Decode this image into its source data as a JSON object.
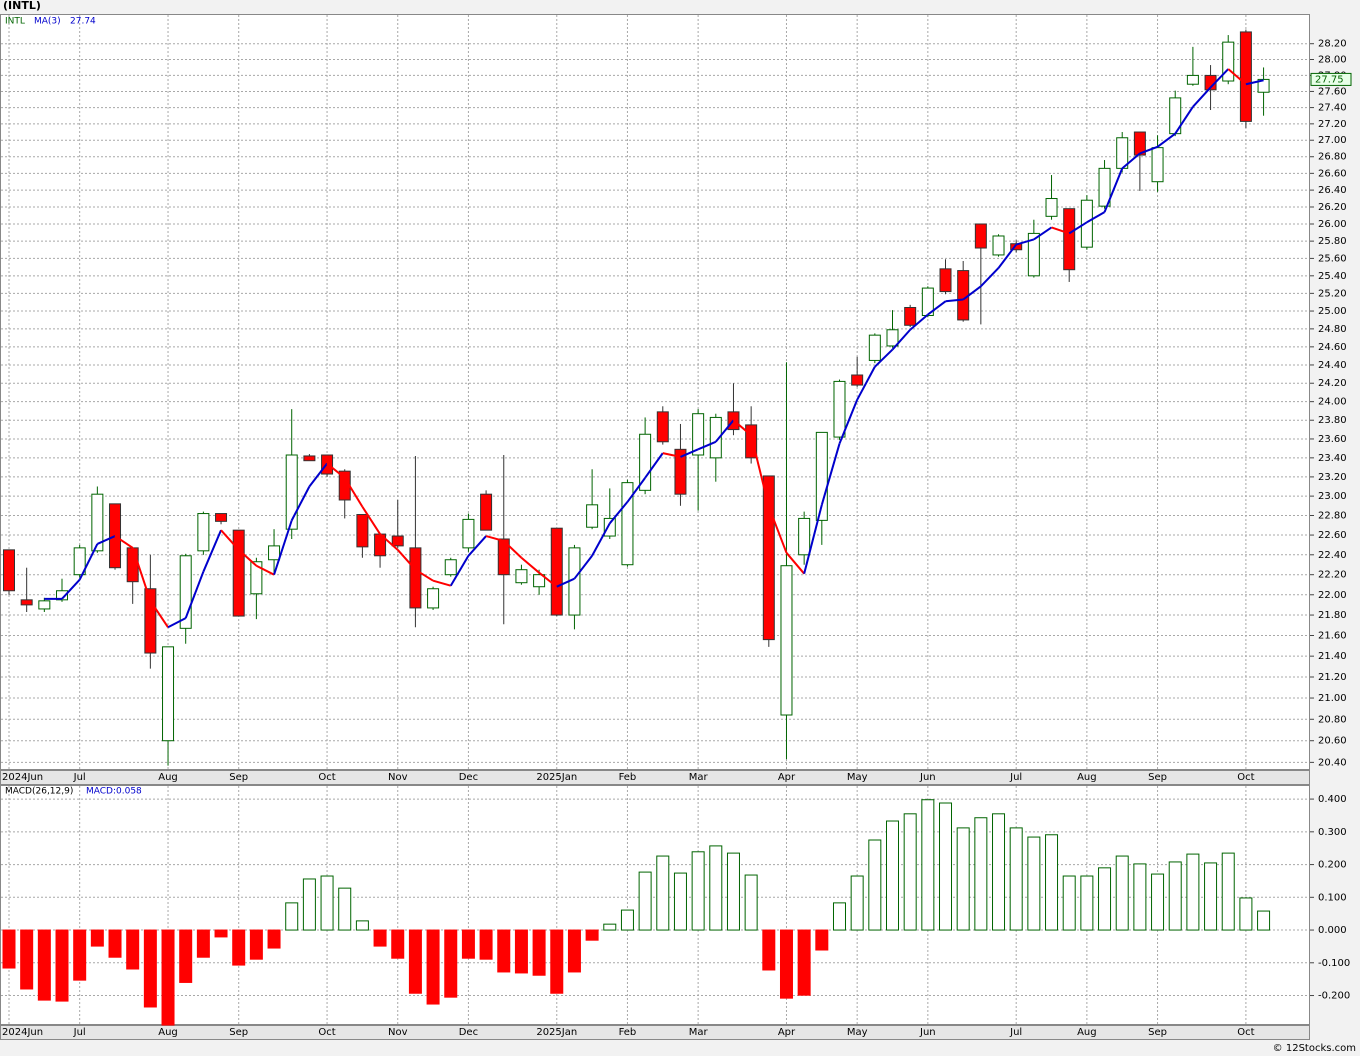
{
  "title": "(INTL)",
  "footer": "© 12Stocks.com",
  "chart_data": [
    {
      "type": "candlestick",
      "symbol": "INTL",
      "log_scale": true,
      "grid": true,
      "up_color": "#006400",
      "down_color": "#ff0000",
      "categories": [
        "2024Jun",
        null,
        null,
        null,
        "Jul",
        null,
        null,
        null,
        null,
        "Aug",
        null,
        null,
        null,
        "Sep",
        null,
        null,
        null,
        null,
        "Oct",
        null,
        null,
        null,
        "Nov",
        null,
        null,
        null,
        "Dec",
        null,
        null,
        null,
        null,
        "2025Jan",
        null,
        null,
        null,
        "Feb",
        null,
        null,
        null,
        "Mar",
        null,
        null,
        null,
        null,
        "Apr",
        null,
        null,
        null,
        "May",
        null,
        null,
        null,
        "Jun",
        null,
        null,
        null,
        null,
        "Jul",
        null,
        null,
        null,
        "Aug",
        null,
        null,
        null,
        "Sep",
        null,
        null,
        null,
        null,
        "Oct",
        null
      ],
      "open": [
        22.45,
        21.95,
        21.86,
        21.95,
        22.2,
        22.44,
        22.92,
        22.47,
        22.06,
        20.6,
        21.67,
        22.44,
        22.82,
        22.65,
        22.01,
        22.35,
        22.66,
        23.42,
        23.43,
        23.26,
        22.81,
        22.61,
        22.59,
        22.47,
        21.87,
        22.2,
        22.47,
        23.02,
        22.56,
        22.12,
        22.08,
        22.67,
        21.8,
        22.68,
        22.59,
        22.3,
        23.06,
        23.89,
        23.49,
        23.43,
        23.4,
        23.89,
        23.75,
        23.21,
        20.84,
        22.4,
        22.75,
        23.62,
        24.29,
        24.45,
        24.61,
        25.04,
        24.95,
        25.48,
        25.46,
        26.0,
        25.64,
        25.77,
        25.4,
        26.09,
        26.18,
        25.73,
        26.21,
        26.66,
        27.1,
        26.5,
        27.08,
        27.69,
        27.8,
        27.73,
        28.35,
        27.59
      ],
      "high": [
        22.45,
        22.27,
        21.97,
        22.16,
        22.5,
        23.1,
        22.92,
        22.47,
        22.4,
        21.49,
        22.41,
        22.84,
        22.82,
        22.65,
        22.37,
        22.66,
        23.92,
        23.44,
        23.43,
        23.28,
        22.81,
        22.61,
        22.96,
        23.42,
        22.08,
        22.37,
        22.82,
        23.06,
        23.43,
        22.3,
        22.25,
        22.67,
        22.5,
        23.28,
        23.08,
        23.17,
        23.83,
        23.95,
        23.76,
        23.92,
        23.87,
        24.2,
        23.95,
        23.21,
        24.43,
        22.84,
        23.67,
        24.24,
        24.49,
        24.75,
        25.01,
        25.07,
        25.28,
        25.59,
        25.57,
        26.0,
        25.88,
        25.81,
        26.05,
        26.58,
        26.18,
        26.34,
        26.76,
        27.1,
        27.1,
        27.06,
        27.61,
        28.16,
        27.93,
        28.31,
        28.38,
        27.9
      ],
      "low": [
        22.0,
        21.83,
        21.83,
        21.93,
        22.17,
        22.42,
        22.25,
        21.91,
        21.28,
        20.37,
        21.52,
        22.4,
        22.71,
        21.79,
        21.76,
        22.2,
        22.56,
        23.37,
        23.2,
        22.77,
        22.37,
        22.27,
        22.47,
        21.68,
        21.85,
        22.18,
        22.43,
        22.65,
        21.71,
        22.1,
        22.0,
        21.79,
        21.66,
        22.66,
        22.56,
        22.28,
        23.02,
        23.54,
        22.9,
        22.85,
        23.15,
        23.64,
        23.34,
        21.49,
        20.43,
        22.3,
        22.5,
        23.59,
        24.16,
        24.42,
        24.59,
        24.82,
        24.93,
        25.19,
        24.88,
        24.85,
        25.62,
        25.67,
        25.38,
        26.05,
        25.33,
        25.7,
        26.18,
        26.61,
        26.39,
        26.38,
        27.05,
        27.67,
        27.37,
        27.69,
        27.15,
        27.3
      ],
      "close": [
        22.04,
        21.9,
        21.94,
        22.04,
        22.47,
        23.02,
        22.27,
        22.13,
        21.43,
        21.49,
        22.39,
        22.82,
        22.74,
        21.79,
        22.33,
        22.49,
        23.43,
        23.37,
        23.23,
        22.96,
        22.48,
        22.39,
        22.49,
        21.87,
        22.06,
        22.35,
        22.76,
        22.65,
        22.2,
        22.25,
        22.2,
        21.8,
        22.47,
        22.91,
        22.77,
        23.14,
        23.65,
        23.57,
        23.02,
        23.87,
        23.83,
        23.7,
        23.4,
        21.56,
        22.29,
        22.77,
        23.67,
        24.22,
        24.18,
        24.73,
        24.79,
        24.84,
        25.26,
        25.22,
        24.9,
        25.72,
        25.86,
        25.7,
        25.89,
        26.3,
        25.47,
        26.28,
        26.66,
        27.03,
        26.82,
        26.91,
        27.52,
        27.8,
        27.62,
        28.22,
        27.23,
        27.75
      ],
      "ma": {
        "name": "MA(3)",
        "rise_color": "#0000cc",
        "fall_color": "#ff0000",
        "values": [
          null,
          null,
          21.96,
          21.96,
          22.15,
          22.51,
          22.59,
          22.47,
          21.94,
          21.68,
          21.77,
          22.23,
          22.65,
          22.45,
          22.29,
          22.2,
          22.75,
          23.1,
          23.34,
          23.19,
          22.89,
          22.61,
          22.45,
          22.25,
          22.14,
          22.09,
          22.39,
          22.59,
          22.54,
          22.37,
          22.22,
          22.08,
          22.16,
          22.39,
          22.72,
          22.94,
          23.19,
          23.45,
          23.41,
          23.49,
          23.57,
          23.8,
          23.64,
          22.89,
          22.42,
          22.21,
          22.91,
          23.55,
          24.02,
          24.38,
          24.57,
          24.79,
          24.96,
          25.11,
          25.13,
          25.28,
          25.49,
          25.76,
          25.82,
          25.96,
          25.89,
          26.02,
          26.14,
          26.66,
          26.84,
          26.92,
          27.08,
          27.41,
          27.65,
          27.88,
          27.69,
          27.74
        ]
      },
      "ylim": [
        20.33,
        28.58
      ],
      "yticks": [
        {
          "value": 20.4,
          "label": "20.40"
        },
        {
          "value": 20.6,
          "label": "20.60"
        },
        {
          "value": 20.8,
          "label": "20.80"
        },
        {
          "value": 21.0,
          "label": "21.00"
        },
        {
          "value": 21.2,
          "label": "21.20"
        },
        {
          "value": 21.4,
          "label": "21.40"
        },
        {
          "value": 21.6,
          "label": "21.60"
        },
        {
          "value": 21.8,
          "label": "21.80"
        },
        {
          "value": 22.0,
          "label": "22.00"
        },
        {
          "value": 22.2,
          "label": "22.20"
        },
        {
          "value": 22.4,
          "label": "22.40"
        },
        {
          "value": 22.6,
          "label": "22.60"
        },
        {
          "value": 22.8,
          "label": "22.80"
        },
        {
          "value": 23.0,
          "label": "23.00"
        },
        {
          "value": 23.2,
          "label": "23.20"
        },
        {
          "value": 23.4,
          "label": "23.40"
        },
        {
          "value": 23.6,
          "label": "23.60"
        },
        {
          "value": 23.8,
          "label": "23.80"
        },
        {
          "value": 24.0,
          "label": "24.00"
        },
        {
          "value": 24.2,
          "label": "24.20"
        },
        {
          "value": 24.4,
          "label": "24.40"
        },
        {
          "value": 24.6,
          "label": "24.60"
        },
        {
          "value": 24.8,
          "label": "24.80"
        },
        {
          "value": 25.0,
          "label": "25.00"
        },
        {
          "value": 25.2,
          "label": "25.20"
        },
        {
          "value": 25.4,
          "label": "25.40"
        },
        {
          "value": 25.6,
          "label": "25.60"
        },
        {
          "value": 25.8,
          "label": "25.80"
        },
        {
          "value": 26.0,
          "label": "26.00"
        },
        {
          "value": 26.2,
          "label": "26.20"
        },
        {
          "value": 26.4,
          "label": "26.40"
        },
        {
          "value": 26.6,
          "label": "26.60"
        },
        {
          "value": 26.8,
          "label": "26.80"
        },
        {
          "value": 27.0,
          "label": "27.00"
        },
        {
          "value": 27.2,
          "label": "27.20"
        },
        {
          "value": 27.4,
          "label": "27.40"
        },
        {
          "value": 27.6,
          "label": "27.60"
        },
        {
          "value": 27.8,
          "label": "27.80"
        },
        {
          "value": 28.0,
          "label": "28.00"
        },
        {
          "value": 28.2,
          "label": "28.20"
        }
      ]
    },
    {
      "type": "bar",
      "name": "MACD(26,12,9)",
      "legend_label": "MACD:0.058",
      "grid": true,
      "pos_color": "#006400",
      "neg_color": "#ff0000",
      "categories": [
        "2024Jun",
        null,
        null,
        null,
        "Jul",
        null,
        null,
        null,
        null,
        "Aug",
        null,
        null,
        null,
        "Sep",
        null,
        null,
        null,
        null,
        "Oct",
        null,
        null,
        null,
        "Nov",
        null,
        null,
        null,
        "Dec",
        null,
        null,
        null,
        null,
        "2025Jan",
        null,
        null,
        null,
        "Feb",
        null,
        null,
        null,
        "Mar",
        null,
        null,
        null,
        null,
        "Apr",
        null,
        null,
        null,
        "May",
        null,
        null,
        null,
        "Jun",
        null,
        null,
        null,
        null,
        "Jul",
        null,
        null,
        null,
        "Aug",
        null,
        null,
        null,
        "Sep",
        null,
        null,
        null,
        null,
        "Oct",
        null
      ],
      "values": [
        -0.116,
        -0.18,
        -0.214,
        -0.217,
        -0.153,
        -0.049,
        -0.083,
        -0.119,
        -0.235,
        -0.29,
        -0.16,
        -0.083,
        -0.021,
        -0.107,
        -0.089,
        -0.055,
        0.083,
        0.156,
        0.165,
        0.128,
        0.028,
        -0.049,
        -0.086,
        -0.193,
        -0.226,
        -0.205,
        -0.086,
        -0.089,
        -0.128,
        -0.131,
        -0.138,
        -0.193,
        -0.128,
        -0.031,
        0.018,
        0.061,
        0.177,
        0.226,
        0.174,
        0.239,
        0.257,
        0.235,
        0.168,
        -0.122,
        -0.208,
        -0.199,
        -0.061,
        0.083,
        0.165,
        0.275,
        0.333,
        0.355,
        0.398,
        0.388,
        0.312,
        0.343,
        0.355,
        0.312,
        0.284,
        0.291,
        0.165,
        0.165,
        0.19,
        0.226,
        0.202,
        0.171,
        0.208,
        0.232,
        0.205,
        0.235,
        0.098,
        0.058
      ],
      "ylim": [
        -0.29,
        0.443
      ],
      "yticks": [
        {
          "value": 0.4,
          "label": "0.400"
        },
        {
          "value": 0.3,
          "label": "0.300"
        },
        {
          "value": 0.2,
          "label": "0.200"
        },
        {
          "value": 0.1,
          "label": "0.100"
        },
        {
          "value": 0,
          "label": "0.000"
        },
        {
          "value": -0.1,
          "label": "-0.100"
        },
        {
          "value": -0.2,
          "label": "-0.200"
        }
      ]
    }
  ]
}
